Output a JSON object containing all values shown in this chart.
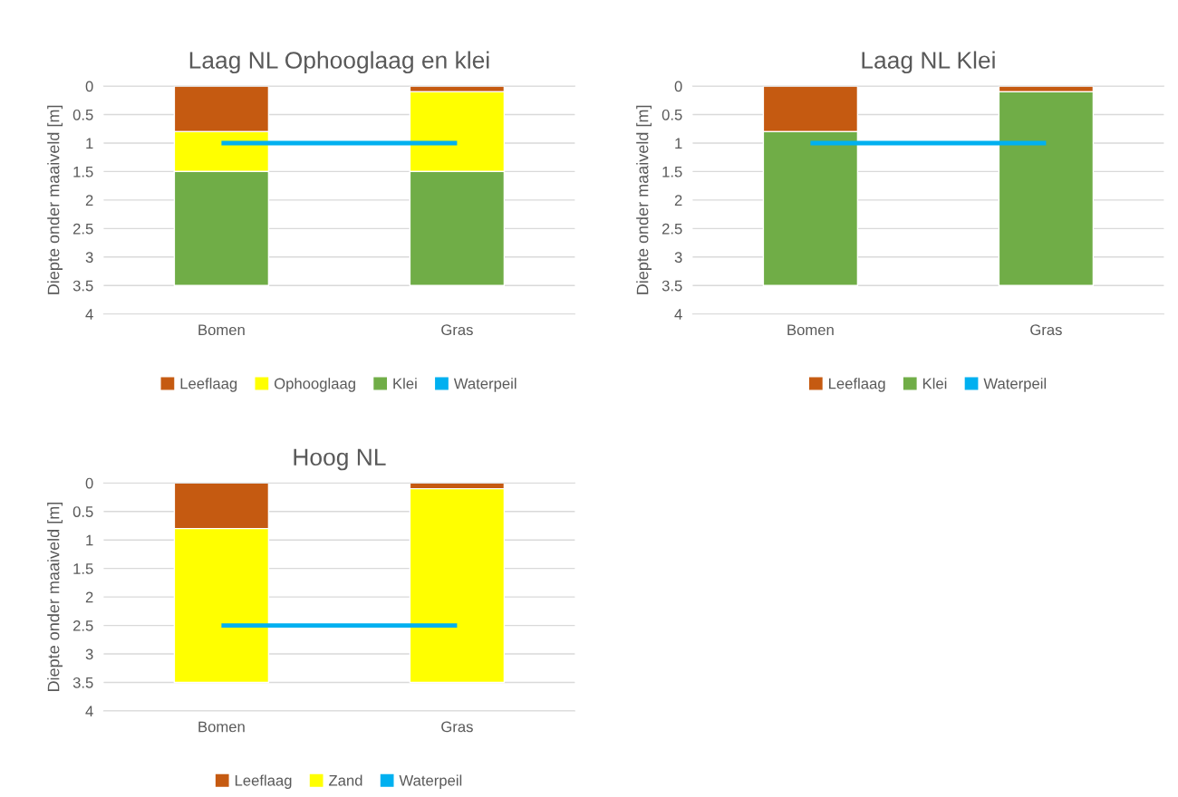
{
  "chart_data": [
    {
      "type": "bar",
      "title": "Laag NL Ophooglaag en klei",
      "ylabel": "Diepte onder maaiveld [m]",
      "categories": [
        "Bomen",
        "Gras"
      ],
      "stacked": true,
      "series": [
        {
          "name": "Leeflaag",
          "color": "#c55a11",
          "values": [
            0.8,
            0.1
          ]
        },
        {
          "name": "Ophooglaag",
          "color": "#ffff00",
          "values": [
            0.7,
            1.4
          ]
        },
        {
          "name": "Klei",
          "color": "#70ad47",
          "values": [
            2.0,
            2.0
          ]
        },
        {
          "name": "Waterpeil",
          "type": "line",
          "color": "#00b0f0",
          "values": [
            1,
            1
          ]
        }
      ],
      "ylim": [
        4,
        0
      ],
      "yticks": [
        0,
        0.5,
        1,
        1.5,
        2,
        2.5,
        3,
        3.5,
        4
      ],
      "grid": "y",
      "legend": "bottom"
    },
    {
      "type": "bar",
      "title": "Laag NL Klei",
      "ylabel": "Diepte onder maaiveld [m]",
      "categories": [
        "Bomen",
        "Gras"
      ],
      "stacked": true,
      "series": [
        {
          "name": "Leeflaag",
          "color": "#c55a11",
          "values": [
            0.8,
            0.1
          ]
        },
        {
          "name": "Klei",
          "color": "#70ad47",
          "values": [
            2.7,
            3.4
          ]
        },
        {
          "name": "Waterpeil",
          "type": "line",
          "color": "#00b0f0",
          "values": [
            1,
            1
          ]
        }
      ],
      "ylim": [
        4,
        0
      ],
      "yticks": [
        0,
        0.5,
        1,
        1.5,
        2,
        2.5,
        3,
        3.5,
        4
      ],
      "grid": "y",
      "legend": "bottom"
    },
    {
      "type": "bar",
      "title": "Hoog NL",
      "ylabel": "Diepte onder maaiveld [m]",
      "categories": [
        "Bomen",
        "Gras"
      ],
      "stacked": true,
      "series": [
        {
          "name": "Leeflaag",
          "color": "#c55a11",
          "values": [
            0.8,
            0.1
          ]
        },
        {
          "name": "Zand",
          "color": "#ffff00",
          "values": [
            2.7,
            3.4
          ]
        },
        {
          "name": "Waterpeil",
          "type": "line",
          "color": "#00b0f0",
          "values": [
            2.5,
            2.5
          ]
        }
      ],
      "ylim": [
        4,
        0
      ],
      "yticks": [
        0,
        0.5,
        1,
        1.5,
        2,
        2.5,
        3,
        3.5,
        4
      ],
      "grid": "y",
      "legend": "bottom"
    }
  ]
}
